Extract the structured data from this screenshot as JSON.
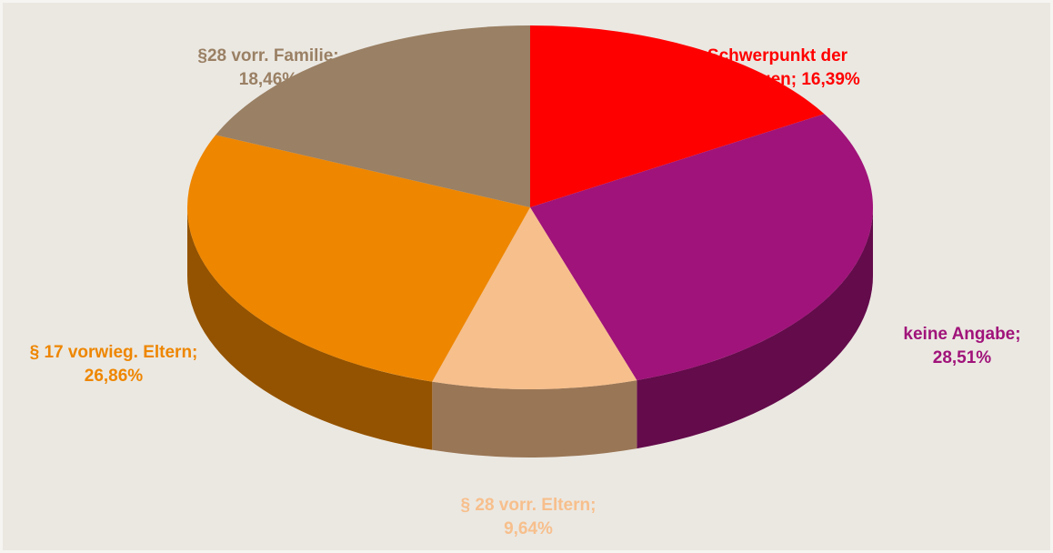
{
  "chart_data": {
    "type": "pie3d",
    "categories": [
      "Schwerpunkt der Beratungen;",
      "keine Angabe;",
      "§ 28 vorr. Eltern;",
      "§ 17 vorwieg. Eltern;",
      "§28 vorr. Familie;"
    ],
    "values": [
      16.39,
      28.51,
      9.64,
      26.86,
      18.46
    ],
    "value_labels": [
      "16,39%",
      "28,51%",
      "9,64%",
      "26,86%",
      "18,46%"
    ],
    "colors": [
      "#ff0000",
      "#a0137a",
      "#f7bf8c",
      "#ee8600",
      "#9a8064"
    ]
  }
}
